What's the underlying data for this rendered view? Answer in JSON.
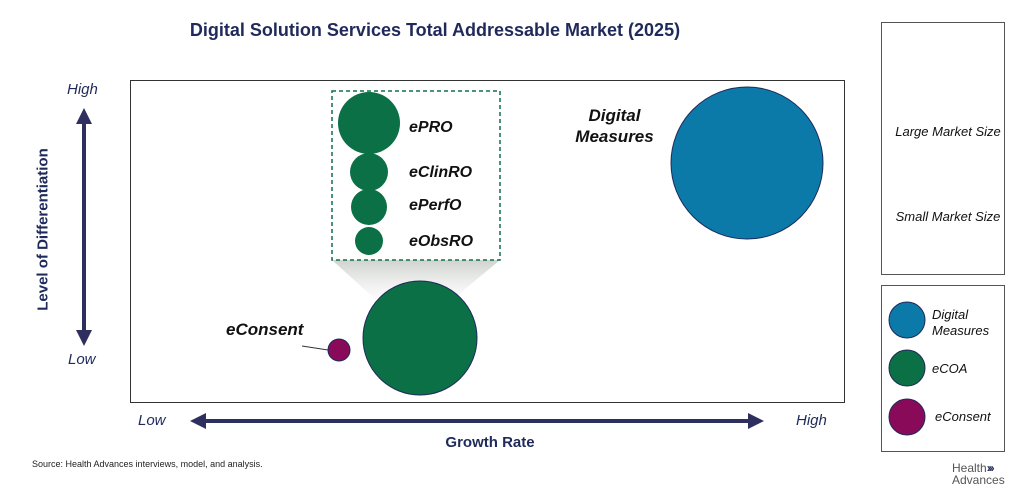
{
  "chart_data": {
    "type": "bubble",
    "title": "Digital Solution Services Total Addressable Market (2025)",
    "xlabel": "Growth Rate",
    "ylabel": "Level of Differentiation",
    "x_axis": {
      "low": "Low",
      "high": "High"
    },
    "y_axis": {
      "low": "Low",
      "high": "High"
    },
    "series": [
      {
        "name": "Digital Measures",
        "label": "Digital Measures",
        "color": "#0b7aa8",
        "x": 0.86,
        "y": 0.73,
        "size": "largest"
      },
      {
        "name": "eCOA",
        "color": "#0b7046",
        "x": 0.4,
        "y": 0.18,
        "size": "large"
      },
      {
        "name": "eConsent",
        "label": "eConsent",
        "color": "#8a0a5a",
        "x": 0.29,
        "y": 0.16,
        "size": "small"
      }
    ],
    "ecoa_breakdown": [
      {
        "label": "ePRO",
        "relative_size": 1.0
      },
      {
        "label": "eClinRO",
        "relative_size": 0.63
      },
      {
        "label": "ePerfO",
        "relative_size": 0.6
      },
      {
        "label": "eObsRO",
        "relative_size": 0.45
      }
    ],
    "legend_size": {
      "large": "Large Market Size",
      "small": "Small Market Size",
      "color": "#1f2a5a"
    },
    "legend_color": [
      {
        "label": "Digital Measures",
        "color": "#0b7aa8"
      },
      {
        "label": "eCOA",
        "color": "#0b7046"
      },
      {
        "label": "eConsent",
        "color": "#8a0a5a"
      }
    ]
  },
  "source": "Source:  Health Advances interviews, model, and analysis.",
  "logo": {
    "line1": "Health",
    "line2": "Advances"
  }
}
